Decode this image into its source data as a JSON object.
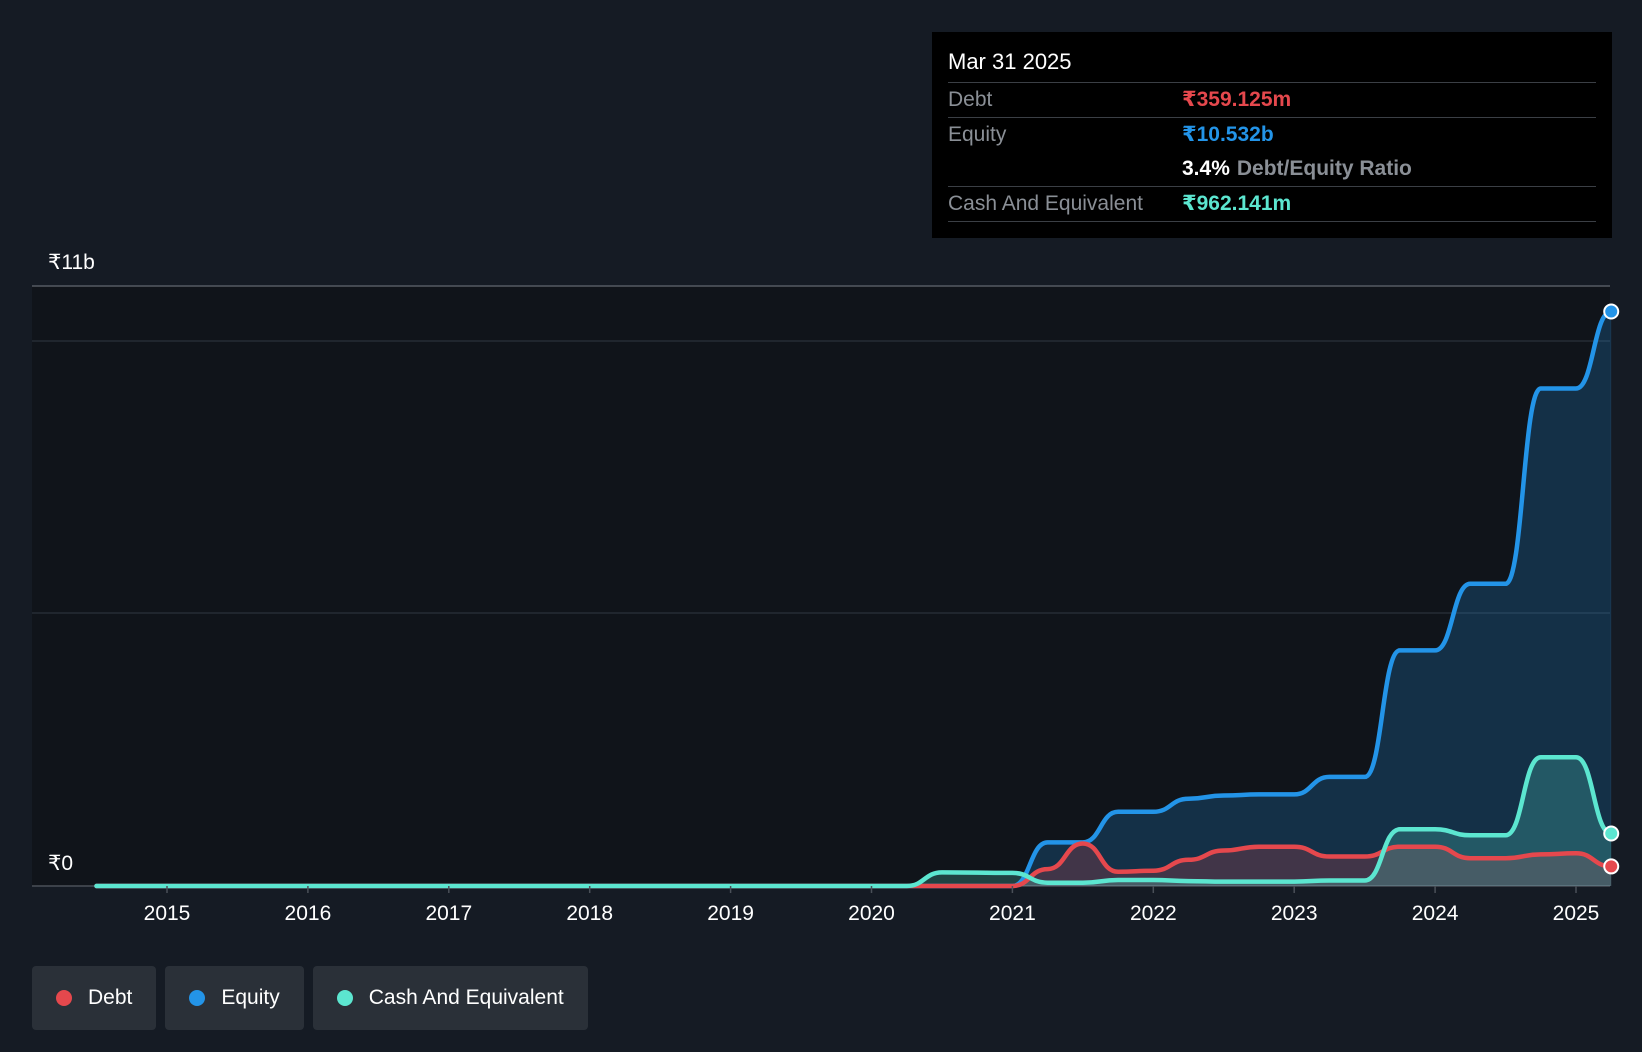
{
  "tooltip": {
    "date": "Mar 31 2025",
    "debt_label": "Debt",
    "debt_value": "₹359.125m",
    "equity_label": "Equity",
    "equity_value": "₹10.532b",
    "ratio_value": "3.4%",
    "ratio_label": "Debt/Equity Ratio",
    "cash_label": "Cash And Equivalent",
    "cash_value": "₹962.141m"
  },
  "legend": [
    {
      "label": "Debt",
      "color": "#e5484d"
    },
    {
      "label": "Equity",
      "color": "#2394e8"
    },
    {
      "label": "Cash And Equivalent",
      "color": "#5ce6d0"
    }
  ],
  "chart_data": {
    "type": "area",
    "y_top_label": "₹11b",
    "y_bottom_label": "₹0",
    "ylim": [
      0,
      11000000000
    ],
    "xlim": [
      2014.0,
      2025.25
    ],
    "xticks": [
      2015,
      2016,
      2017,
      2018,
      2019,
      2020,
      2021,
      2022,
      2023,
      2024,
      2025
    ],
    "xtick_labels": [
      "2015",
      "2016",
      "2017",
      "2018",
      "2019",
      "2020",
      "2021",
      "2022",
      "2023",
      "2024",
      "2025"
    ],
    "grid": true,
    "legend_position": "bottom-left",
    "series": [
      {
        "name": "Equity",
        "color": "#2394e8",
        "x": [
          2014.5,
          2020.25,
          2020.5,
          2021.0,
          2021.25,
          2021.5,
          2021.75,
          2022.0,
          2022.25,
          2022.5,
          2022.75,
          2023.0,
          2023.25,
          2023.5,
          2023.75,
          2024.0,
          2024.25,
          2024.5,
          2024.75,
          2025.0,
          2025.25
        ],
        "y": [
          0,
          0,
          0,
          0,
          800000000,
          800000000,
          1360000000,
          1360000000,
          1600000000,
          1660000000,
          1680000000,
          1680000000,
          2000000000,
          2000000000,
          4320000000,
          4320000000,
          5540000000,
          5540000000,
          9120000000,
          9120000000,
          10532000000
        ]
      },
      {
        "name": "Debt",
        "color": "#e5484d",
        "x": [
          2014.5,
          2020.25,
          2020.5,
          2021.0,
          2021.25,
          2021.5,
          2021.75,
          2022.0,
          2022.25,
          2022.5,
          2022.75,
          2023.0,
          2023.25,
          2023.5,
          2023.75,
          2024.0,
          2024.25,
          2024.5,
          2024.75,
          2025.0,
          2025.25
        ],
        "y": [
          0,
          0,
          0,
          0,
          310000000,
          780000000,
          260000000,
          280000000,
          480000000,
          650000000,
          720000000,
          720000000,
          540000000,
          540000000,
          720000000,
          720000000,
          510000000,
          510000000,
          580000000,
          600000000,
          359125000
        ]
      },
      {
        "name": "Cash And Equivalent",
        "color": "#5ce6d0",
        "x": [
          2014.5,
          2020.25,
          2020.5,
          2021.0,
          2021.25,
          2021.5,
          2021.75,
          2022.0,
          2022.25,
          2022.5,
          2022.75,
          2023.0,
          2023.25,
          2023.5,
          2023.75,
          2024.0,
          2024.25,
          2024.5,
          2024.75,
          2025.0,
          2025.25
        ],
        "y": [
          0,
          0,
          250000000,
          240000000,
          60000000,
          60000000,
          110000000,
          110000000,
          90000000,
          80000000,
          80000000,
          80000000,
          100000000,
          100000000,
          1040000000,
          1040000000,
          930000000,
          930000000,
          2360000000,
          2360000000,
          962141000
        ]
      }
    ]
  }
}
